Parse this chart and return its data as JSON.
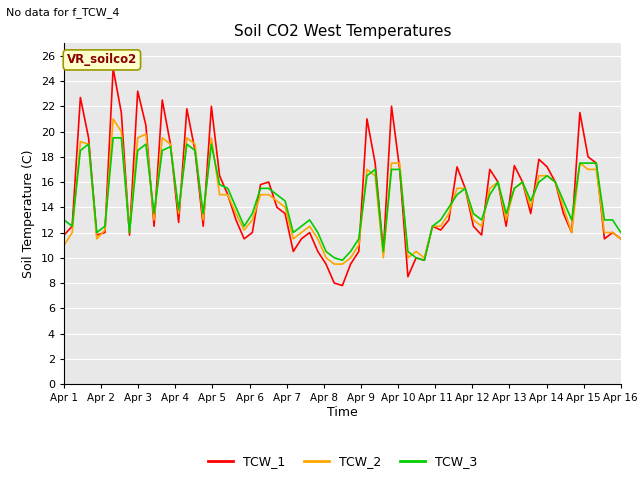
{
  "title": "Soil CO2 West Temperatures",
  "no_data_text": "No data for f_TCW_4",
  "vr_label": "VR_soilco2",
  "xlabel": "Time",
  "ylabel": "Soil Temperature (C)",
  "ylim": [
    0,
    27
  ],
  "yticks": [
    0,
    2,
    4,
    6,
    8,
    10,
    12,
    14,
    16,
    18,
    20,
    22,
    24,
    26
  ],
  "bg_color": "#e8e8e8",
  "grid_color": "#ffffff",
  "line_colors": [
    "#ff0000",
    "#ffa500",
    "#00cc00"
  ],
  "line_labels": [
    "TCW_1",
    "TCW_2",
    "TCW_3"
  ],
  "x_labels": [
    "Apr 1",
    "Apr 2",
    "Apr 3",
    "Apr 4",
    "Apr 5",
    "Apr 6",
    "Apr 7",
    "Apr 8",
    "Apr 9",
    "Apr 10",
    "Apr 11",
    "Apr 12",
    "Apr 13",
    "Apr 14",
    "Apr 15",
    "Apr 16"
  ],
  "TCW_1": [
    11.8,
    12.5,
    22.7,
    19.5,
    11.8,
    12.0,
    25.0,
    21.5,
    11.8,
    23.2,
    20.5,
    12.5,
    22.5,
    19.0,
    12.8,
    21.8,
    18.5,
    12.5,
    22.0,
    16.5,
    15.0,
    13.0,
    11.5,
    12.0,
    15.8,
    16.0,
    14.0,
    13.5,
    10.5,
    11.5,
    12.0,
    10.5,
    9.5,
    8.0,
    7.8,
    9.5,
    10.5,
    21.0,
    17.5,
    10.5,
    22.0,
    17.0,
    8.5,
    10.0,
    9.8,
    12.5,
    12.2,
    13.0,
    17.2,
    15.5,
    12.5,
    11.8,
    17.0,
    16.0,
    12.5,
    17.3,
    16.0,
    13.5,
    17.8,
    17.2,
    16.0,
    13.5,
    12.0,
    21.5,
    18.0,
    17.5,
    11.5,
    12.0,
    11.5
  ],
  "TCW_2": [
    11.0,
    12.0,
    19.2,
    19.0,
    11.5,
    12.2,
    21.0,
    20.0,
    12.0,
    19.5,
    19.8,
    13.0,
    19.5,
    19.0,
    13.5,
    19.5,
    19.0,
    13.0,
    19.5,
    15.0,
    15.0,
    13.5,
    12.2,
    13.0,
    15.0,
    15.0,
    14.5,
    14.0,
    11.5,
    12.0,
    12.5,
    11.5,
    10.0,
    9.5,
    9.5,
    10.0,
    11.0,
    17.0,
    16.5,
    10.0,
    17.5,
    17.5,
    10.0,
    10.5,
    10.0,
    12.5,
    12.5,
    13.5,
    15.5,
    15.5,
    13.0,
    12.5,
    15.5,
    16.0,
    13.0,
    15.5,
    16.0,
    14.0,
    16.5,
    16.5,
    16.0,
    14.0,
    12.0,
    17.5,
    17.0,
    17.0,
    12.0,
    12.0,
    11.5
  ],
  "TCW_3": [
    13.0,
    12.5,
    18.5,
    19.0,
    12.0,
    12.5,
    19.5,
    19.5,
    12.0,
    18.5,
    19.0,
    13.5,
    18.5,
    18.8,
    13.8,
    19.0,
    18.5,
    13.5,
    19.0,
    15.8,
    15.5,
    14.0,
    12.5,
    13.5,
    15.5,
    15.5,
    15.0,
    14.5,
    12.0,
    12.5,
    13.0,
    12.0,
    10.5,
    10.0,
    9.8,
    10.5,
    11.5,
    16.5,
    17.0,
    10.5,
    17.0,
    17.0,
    10.5,
    10.0,
    9.8,
    12.5,
    13.0,
    14.0,
    15.0,
    15.5,
    13.5,
    13.0,
    15.0,
    16.0,
    13.5,
    15.5,
    16.0,
    14.5,
    16.0,
    16.5,
    16.0,
    14.5,
    13.0,
    17.5,
    17.5,
    17.5,
    13.0,
    13.0,
    12.0
  ]
}
